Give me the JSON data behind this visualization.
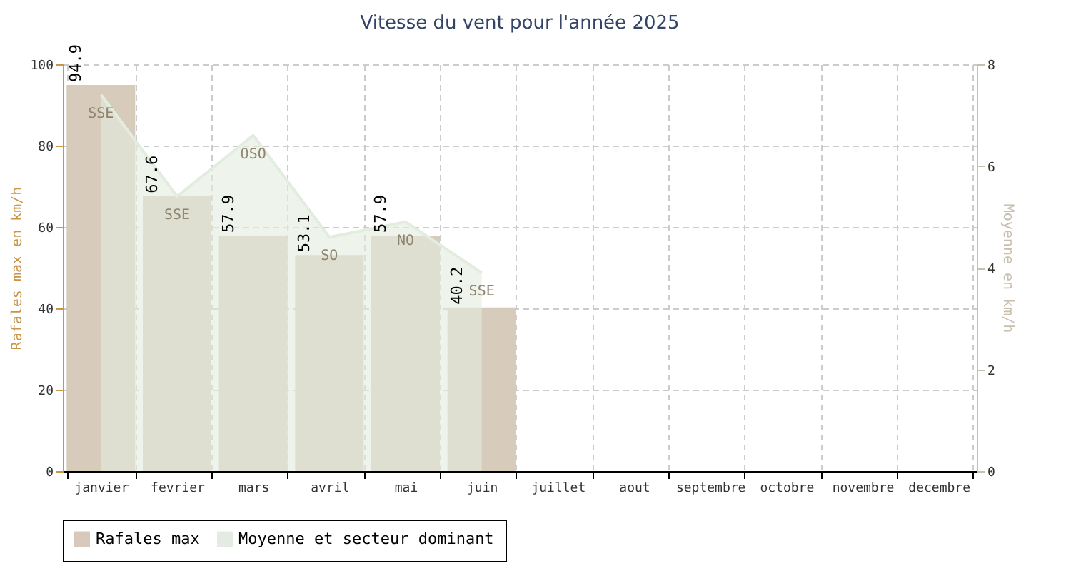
{
  "chart_data": {
    "type": "bar",
    "title": "Vitesse du vent pour l'année 2025",
    "ylabel": "Rafales max en km/h",
    "y2label": "Moyenne en km/h",
    "categories": [
      "janvier",
      "fevrier",
      "mars",
      "avril",
      "mai",
      "juin",
      "juillet",
      "aout",
      "septembre",
      "octobre",
      "novembre",
      "decembre"
    ],
    "ylim": [
      0,
      100
    ],
    "yticks": [
      0,
      20,
      40,
      60,
      80,
      100
    ],
    "y2lim": [
      0,
      8
    ],
    "y2ticks": [
      0,
      2,
      4,
      6,
      8
    ],
    "grid": true,
    "legend": "bottom",
    "series": [
      {
        "name": "Rafales max",
        "color": "#d5c8b8",
        "values": [
          94.9,
          67.6,
          57.9,
          53.1,
          57.9,
          40.2,
          null,
          null,
          null,
          null,
          null,
          null
        ],
        "value_labels": [
          "94.9",
          "67.6",
          "57.9",
          "53.1",
          "57.9",
          "40.2",
          null,
          null,
          null,
          null,
          null,
          null
        ]
      },
      {
        "name": "Moyenne et secteur dominant",
        "type": "area",
        "axis": "y2",
        "color": "#e2ecdf",
        "values": [
          7.4,
          5.4,
          6.6,
          4.6,
          4.9,
          3.9,
          null,
          null,
          null,
          null,
          null,
          null
        ],
        "value_labels": [
          "SSE",
          "SSE",
          "OSO",
          "SO",
          "NO",
          "SSE",
          null,
          null,
          null,
          null,
          null,
          null
        ]
      }
    ]
  }
}
